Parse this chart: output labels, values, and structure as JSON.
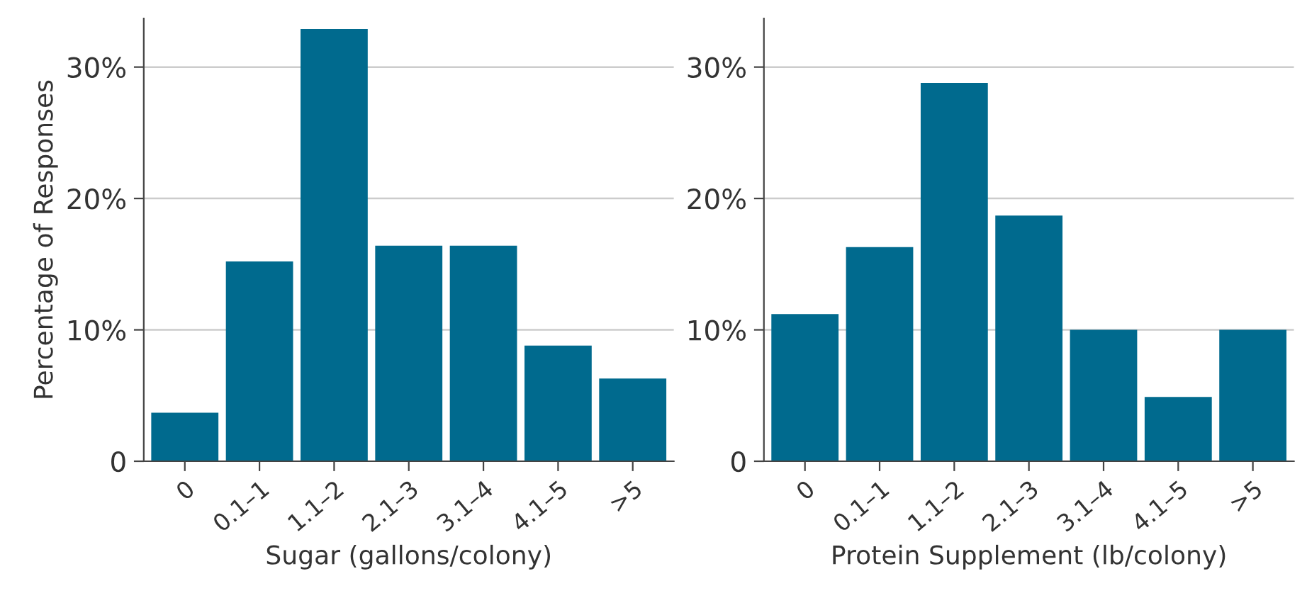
{
  "chart_data": [
    {
      "type": "bar",
      "ylabel": "Percentage of Responses",
      "xlabel": "Sugar (gallons/colony)",
      "categories": [
        "0",
        "0.1–1",
        "1.1–2",
        "2.1–3",
        "3.1–4",
        "4.1–5",
        ">5"
      ],
      "values": [
        3.7,
        15.2,
        32.9,
        16.4,
        16.4,
        8.8,
        6.3
      ],
      "color": "#006a8e",
      "ylim": [
        0,
        33.7
      ],
      "yticks": [
        0,
        {
          "value": 10,
          "label": "10%"
        },
        {
          "value": 20,
          "label": "20%"
        },
        {
          "value": 30,
          "label": "30%"
        }
      ],
      "grid": "y"
    },
    {
      "type": "bar",
      "xlabel": "Protein Supplement (lb/colony)",
      "categories": [
        "0",
        "0.1–1",
        "1.1–2",
        "2.1–3",
        "3.1–4",
        "4.1–5",
        ">5"
      ],
      "values": [
        11.2,
        16.3,
        28.8,
        18.7,
        10.0,
        4.9,
        10.0
      ],
      "color": "#006a8e",
      "ylim": [
        0,
        33.7
      ],
      "yticks": [
        0,
        {
          "value": 10,
          "label": "10%"
        },
        {
          "value": 20,
          "label": "20%"
        },
        {
          "value": 30,
          "label": "30%"
        }
      ],
      "grid": "y"
    }
  ]
}
